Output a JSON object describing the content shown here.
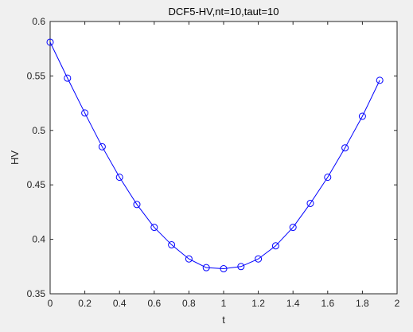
{
  "chart_data": {
    "type": "line",
    "title": "DCF5-HV,nt=10,taut=10",
    "xlabel": "t",
    "ylabel": "HV",
    "xlim": [
      0,
      2
    ],
    "ylim": [
      0.35,
      0.6
    ],
    "grid": false,
    "legend": "none",
    "x_ticks": [
      "0",
      "0.2",
      "0.4",
      "0.6",
      "0.8",
      "1",
      "1.2",
      "1.4",
      "1.6",
      "1.8",
      "2"
    ],
    "y_ticks": [
      "0.35",
      "0.4",
      "0.45",
      "0.5",
      "0.55",
      "0.6"
    ],
    "series": [
      {
        "marker": "circle",
        "color": "#0000ff",
        "x": [
          0,
          0.1,
          0.2,
          0.3,
          0.4,
          0.5,
          0.6,
          0.7,
          0.8,
          0.9,
          1.0,
          1.1,
          1.2,
          1.3,
          1.4,
          1.5,
          1.6,
          1.7,
          1.8,
          1.9
        ],
        "y": [
          0.581,
          0.548,
          0.516,
          0.485,
          0.457,
          0.432,
          0.411,
          0.395,
          0.382,
          0.374,
          0.373,
          0.375,
          0.382,
          0.394,
          0.411,
          0.433,
          0.457,
          0.484,
          0.513,
          0.546
        ]
      }
    ]
  }
}
